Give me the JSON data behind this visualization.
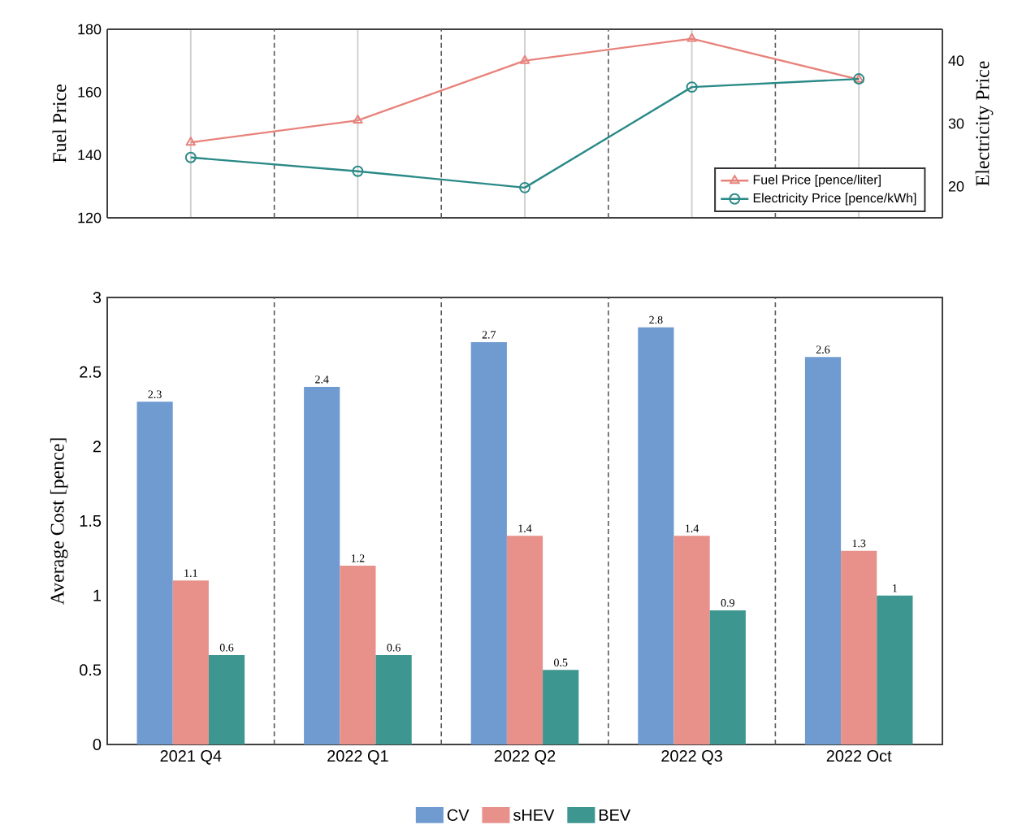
{
  "chart_data": [
    {
      "type": "line",
      "categories": [
        null,
        null,
        null,
        null,
        null
      ],
      "ylabel": "Fuel Price",
      "y2label": "Electricity Price",
      "ylim": [
        120,
        180
      ],
      "yticks": [
        120,
        140,
        160,
        180
      ],
      "y2lim": [
        15,
        45
      ],
      "y2ticks": [
        20,
        30,
        40
      ],
      "grid": "x",
      "legend": "bottom right",
      "tick_labels": "y",
      "series": [
        {
          "name": "Fuel Price [pence/liter]",
          "color": "#e8837c",
          "marker": "triangle",
          "values": [
            144,
            151,
            170,
            177,
            164
          ]
        },
        {
          "name": "Electricity Price [pence/kWh]",
          "color": "#2a8a87",
          "marker": "circle",
          "axis": "y2",
          "values": [
            24.6,
            22.4,
            19.8,
            35.8,
            37.1
          ]
        }
      ]
    },
    {
      "type": "bar",
      "categories": [
        "2021 Q4",
        "2022 Q1",
        "2022 Q2",
        "2022 Q3",
        "2022 Oct"
      ],
      "ylabel": "Average Cost [pence]",
      "ylim": [
        0,
        3
      ],
      "yticks": [
        0,
        0.5,
        1,
        1.5,
        2,
        2.5,
        3
      ],
      "data_labels": true,
      "legend": "bottom",
      "series": [
        {
          "name": "CV",
          "color": "#6f9bd1",
          "values": [
            2.3,
            2.4,
            2.7,
            2.8,
            2.6
          ]
        },
        {
          "name": "sHEV",
          "color": "#e8908a",
          "values": [
            1.1,
            1.2,
            1.4,
            1.4,
            1.3
          ]
        },
        {
          "name": "BEV",
          "color": "#3e9690",
          "values": [
            0.6,
            0.6,
            0.5,
            0.9,
            1
          ]
        }
      ]
    }
  ]
}
